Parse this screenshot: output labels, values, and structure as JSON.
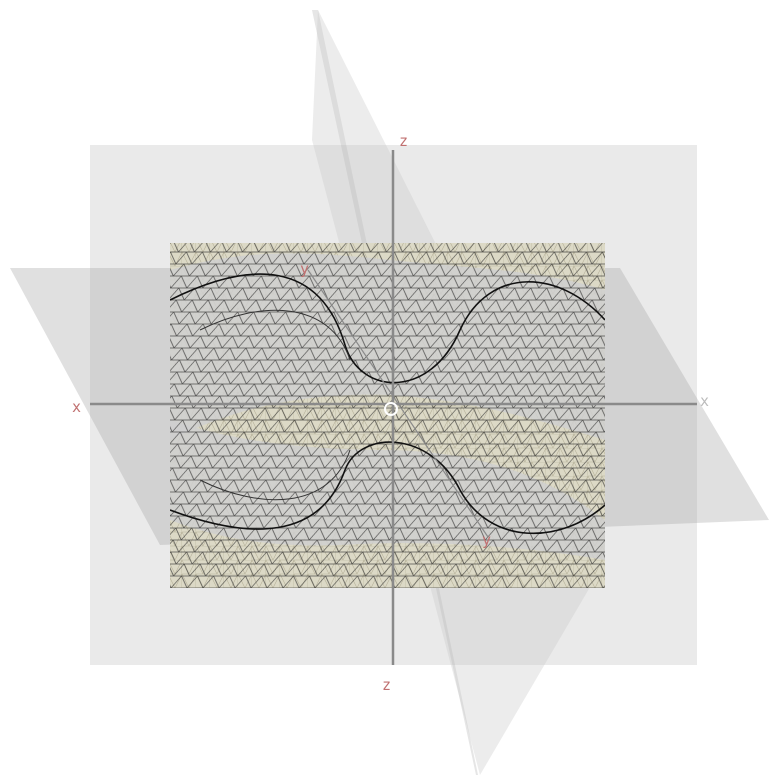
{
  "viewer": {
    "background": "#ffffff",
    "plane_color": "#d8d8d8",
    "surface_color": "#d9d6c0",
    "mesh_color": "#1a1a1a",
    "axis_color": "#888888",
    "label_color": "#c07070"
  },
  "axes": {
    "z_top": "z",
    "z_bottom": "z",
    "x_left": "x",
    "x_right": "x",
    "y_upper": "y",
    "y_lower": "y"
  }
}
